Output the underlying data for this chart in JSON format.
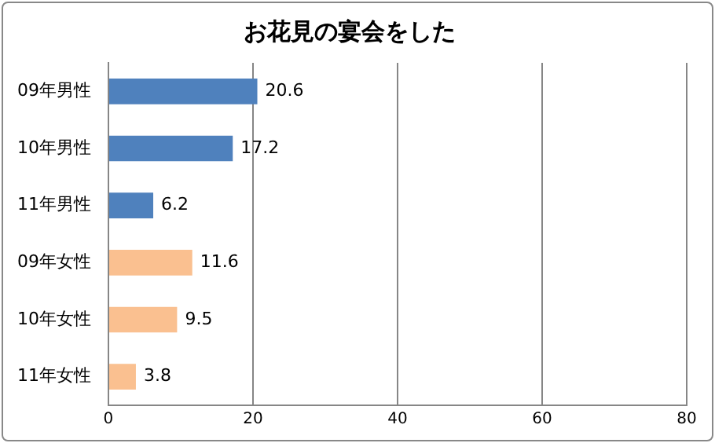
{
  "chart_data": {
    "type": "bar",
    "title": "お花見の宴会をした",
    "orientation": "horizontal",
    "categories": [
      "09年男性",
      "10年男性",
      "11年男性",
      "09年女性",
      "10年女性",
      "11年女性"
    ],
    "values": [
      20.6,
      17.2,
      6.2,
      11.6,
      9.5,
      3.8
    ],
    "colors": [
      "#4f81bd",
      "#4f81bd",
      "#4f81bd",
      "#fac090",
      "#fac090",
      "#fac090"
    ],
    "xlim": [
      0,
      80
    ],
    "xticks": [
      0,
      20,
      40,
      60,
      80
    ],
    "grid": "x",
    "data_labels": true,
    "legend": false
  }
}
